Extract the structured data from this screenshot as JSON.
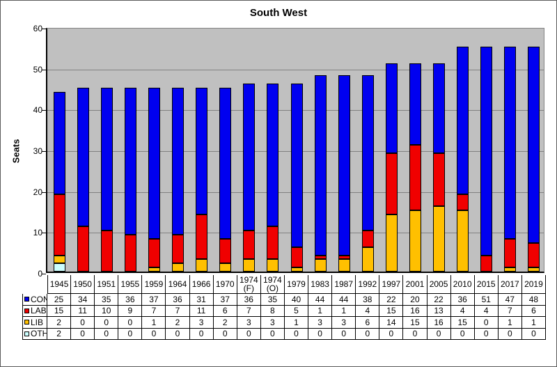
{
  "window": {
    "background": "#FFFFFF",
    "frame_border_color": "#595959"
  },
  "chart_data": {
    "type": "bar",
    "stacked": true,
    "title": "South West",
    "ylabel": "Seats",
    "xlabel": "",
    "ylim": [
      0,
      60
    ],
    "yticks": [
      0,
      10,
      20,
      30,
      40,
      50,
      60
    ],
    "grid": true,
    "plot_bg": "#C0C0C0",
    "gridline_color": "#808080",
    "bar_border_color": "#000000",
    "legend_position": "table-left-keys",
    "categories": [
      "1945",
      "1950",
      "1951",
      "1955",
      "1959",
      "1964",
      "1966",
      "1970",
      "1974 (F)",
      "1974 (O)",
      "1979",
      "1983",
      "1987",
      "1992",
      "1997",
      "2001",
      "2005",
      "2010",
      "2015",
      "2017",
      "2019"
    ],
    "series": [
      {
        "name": "CON",
        "color": "#0000F0",
        "values": [
          25,
          34,
          35,
          36,
          37,
          36,
          31,
          37,
          36,
          35,
          40,
          44,
          44,
          38,
          22,
          20,
          22,
          36,
          51,
          47,
          48
        ]
      },
      {
        "name": "LAB",
        "color": "#F00000",
        "values": [
          15,
          11,
          10,
          9,
          7,
          7,
          11,
          6,
          7,
          8,
          5,
          1,
          1,
          4,
          15,
          16,
          13,
          4,
          4,
          7,
          6
        ]
      },
      {
        "name": "LIB",
        "color": "#FFC000",
        "values": [
          2,
          0,
          0,
          0,
          1,
          2,
          3,
          2,
          3,
          3,
          1,
          3,
          3,
          6,
          14,
          15,
          16,
          15,
          0,
          1,
          1
        ]
      },
      {
        "name": "OTH",
        "color": "#CCFFFF",
        "values": [
          2,
          0,
          0,
          0,
          0,
          0,
          0,
          0,
          0,
          0,
          0,
          0,
          0,
          0,
          0,
          0,
          0,
          0,
          0,
          0,
          0
        ]
      }
    ],
    "stack_order_bottom_to_top": [
      "OTH",
      "LIB",
      "LAB",
      "CON"
    ]
  }
}
